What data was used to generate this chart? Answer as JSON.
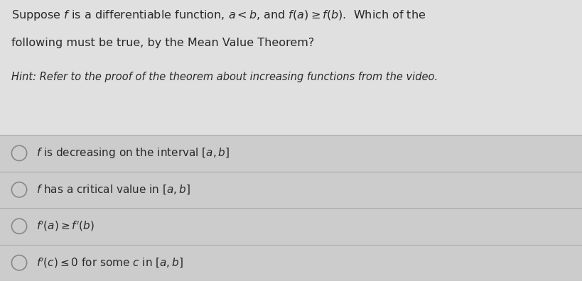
{
  "bg_color": "#e0e0e0",
  "text_color": "#2a2a2a",
  "hint_color": "#2a2a2a",
  "title_line1": "Suppose $f$ is a differentiable function, $a < b$, and $f(a) \\geq f(b)$.  Which of the",
  "title_line2": "following must be true, by the Mean Value Theorem?",
  "hint_text": "Hint: Refer to the proof of the theorem about increasing functions from the video.",
  "options": [
    "$f$ is decreasing on the interval $[a, b]$",
    "$f$ has a critical value in $[a, b]$",
    "$f'(a) \\geq f'(b)$",
    "$f'(c) \\leq 0$ for some $c$ in $[a, b]$"
  ],
  "option_bg": "#cccccc",
  "divider_color": "#aaaaaa",
  "fig_width": 8.19,
  "fig_height": 3.96
}
